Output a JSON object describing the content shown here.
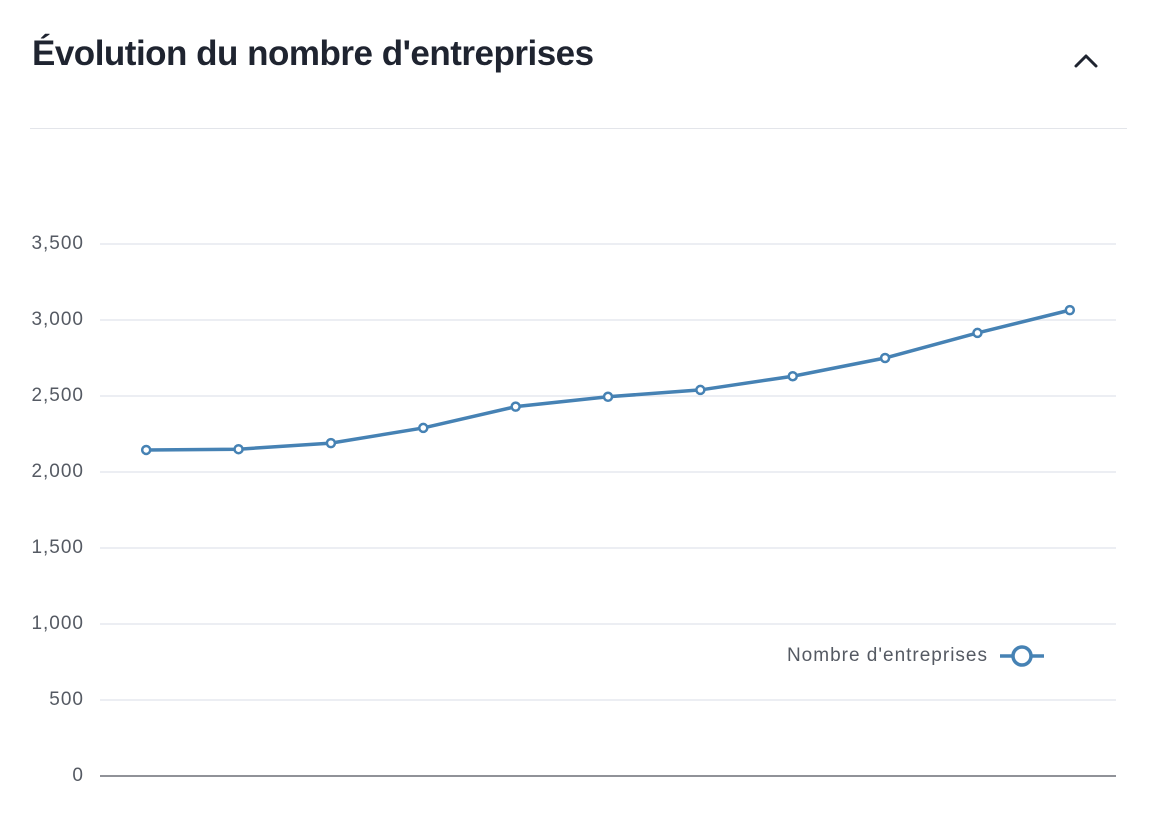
{
  "header": {
    "title": "Évolution du nombre d'entreprises"
  },
  "chart_data": {
    "type": "line",
    "categories": [
      null,
      null,
      null,
      null,
      null,
      null,
      null,
      null,
      null,
      null,
      null
    ],
    "series": [
      {
        "name": "Nombre d'entreprises",
        "color": "#4682b4",
        "values": [
          2145,
          2150,
          2190,
          2290,
          2430,
          2495,
          2540,
          2630,
          2750,
          2915,
          3065
        ]
      }
    ],
    "ylim": [
      0,
      3500
    ],
    "yticks": [
      0,
      500,
      {
        "value": 1000,
        "label": "1,000"
      },
      {
        "value": 1500,
        "label": "1,500"
      },
      {
        "value": 2000,
        "label": "2,000"
      },
      {
        "value": 2500,
        "label": "2,500"
      },
      {
        "value": 3000,
        "label": "3,000"
      },
      {
        "value": 3500,
        "label": "3,500"
      }
    ],
    "grid": true,
    "legend": "lower-right"
  }
}
